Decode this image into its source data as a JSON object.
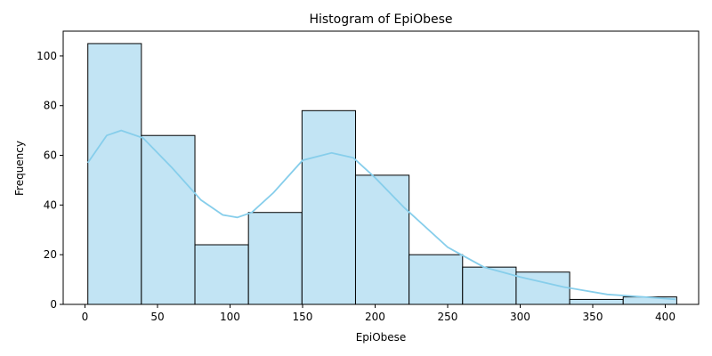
{
  "chart_data": {
    "type": "bar",
    "title": "Histogram of EpiObese",
    "xlabel": "EpiObese",
    "ylabel": "Frequency",
    "xlim": [
      -15,
      423
    ],
    "ylim": [
      0,
      110
    ],
    "xticks": [
      0,
      50,
      100,
      150,
      200,
      250,
      300,
      350,
      400
    ],
    "yticks": [
      0,
      20,
      40,
      60,
      80,
      100
    ],
    "bins": [
      {
        "start": 2,
        "end": 38.9,
        "count": 105
      },
      {
        "start": 38.9,
        "end": 75.8,
        "count": 68
      },
      {
        "start": 75.8,
        "end": 112.7,
        "count": 24
      },
      {
        "start": 112.7,
        "end": 149.6,
        "count": 37
      },
      {
        "start": 149.6,
        "end": 186.5,
        "count": 78
      },
      {
        "start": 186.5,
        "end": 223.4,
        "count": 52
      },
      {
        "start": 223.4,
        "end": 260.3,
        "count": 20
      },
      {
        "start": 260.3,
        "end": 297.2,
        "count": 15
      },
      {
        "start": 297.2,
        "end": 334.1,
        "count": 13
      },
      {
        "start": 334.1,
        "end": 371,
        "count": 2
      },
      {
        "start": 371,
        "end": 407.9,
        "count": 3
      }
    ],
    "kde": {
      "x": [
        2,
        15,
        25,
        40,
        60,
        80,
        95,
        105,
        115,
        130,
        150,
        170,
        185,
        200,
        220,
        250,
        275,
        300,
        330,
        360,
        385,
        407
      ],
      "y": [
        57,
        68,
        70,
        67,
        55,
        42,
        36,
        35,
        37,
        45,
        58,
        61,
        59,
        51,
        39,
        23,
        15,
        11,
        7,
        4,
        3,
        2
      ]
    },
    "bar_color": "#c2e4f4",
    "bar_edge_color": "#000000",
    "kde_color": "#87ceeb",
    "grid": false,
    "legend": "none"
  }
}
